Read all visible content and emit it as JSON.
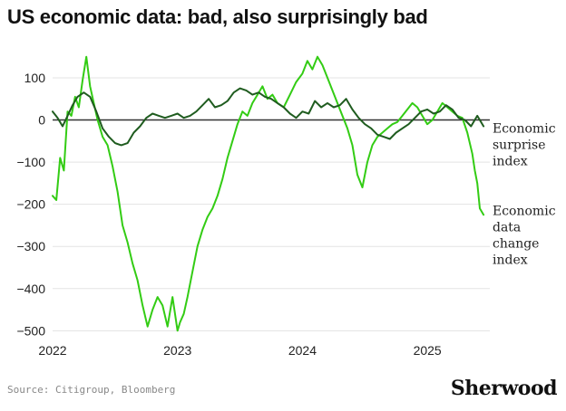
{
  "title": "US economic data: bad, also surprisingly bad",
  "source": "Source: Citigroup, Bloomberg",
  "brand": "Sherwood",
  "chart_data": {
    "type": "line",
    "ylim": [
      -510,
      160
    ],
    "yticks": [
      100,
      0,
      -100,
      -200,
      -300,
      -400,
      -500
    ],
    "ytick_labels": [
      "100",
      "0",
      "−100",
      "−200",
      "−300",
      "−400",
      "−500"
    ],
    "xlim": [
      2022.0,
      2025.5
    ],
    "xticks": [
      2022,
      2023,
      2024,
      2025
    ],
    "xtick_labels": [
      "2022",
      "2023",
      "2024",
      "2025"
    ],
    "grid": "horizontal",
    "zero_line": true,
    "series": [
      {
        "name": "Economic surprise index",
        "label_lines": [
          "Economic",
          "surprise",
          "index"
        ],
        "color": "#1f5c1f",
        "x": [
          2022.0,
          2022.04,
          2022.08,
          2022.12,
          2022.16,
          2022.2,
          2022.25,
          2022.3,
          2022.35,
          2022.4,
          2022.45,
          2022.5,
          2022.55,
          2022.6,
          2022.65,
          2022.7,
          2022.75,
          2022.8,
          2022.85,
          2022.9,
          2022.95,
          2023.0,
          2023.05,
          2023.1,
          2023.15,
          2023.2,
          2023.25,
          2023.3,
          2023.35,
          2023.4,
          2023.45,
          2023.5,
          2023.55,
          2023.6,
          2023.65,
          2023.7,
          2023.75,
          2023.8,
          2023.85,
          2023.9,
          2023.95,
          2024.0,
          2024.05,
          2024.1,
          2024.15,
          2024.2,
          2024.25,
          2024.3,
          2024.35,
          2024.4,
          2024.45,
          2024.5,
          2024.55,
          2024.6,
          2024.65,
          2024.7,
          2024.75,
          2024.8,
          2024.85,
          2024.9,
          2024.95,
          2025.0,
          2025.05,
          2025.1,
          2025.15,
          2025.2,
          2025.25,
          2025.3,
          2025.35,
          2025.4,
          2025.45
        ],
        "y": [
          20,
          5,
          -15,
          10,
          35,
          55,
          65,
          55,
          20,
          -20,
          -40,
          -55,
          -60,
          -55,
          -30,
          -15,
          5,
          15,
          10,
          5,
          10,
          15,
          5,
          10,
          20,
          35,
          50,
          30,
          35,
          45,
          65,
          75,
          70,
          60,
          65,
          55,
          50,
          40,
          30,
          15,
          5,
          20,
          15,
          45,
          30,
          40,
          30,
          35,
          50,
          25,
          5,
          -10,
          -20,
          -35,
          -40,
          -45,
          -30,
          -20,
          -10,
          5,
          20,
          25,
          15,
          20,
          35,
          25,
          5,
          0,
          -15,
          10,
          -15
        ]
      },
      {
        "name": "Economic data change index",
        "label_lines": [
          "Economic",
          "data",
          "change",
          "index"
        ],
        "color": "#33cc14",
        "x": [
          2022.0,
          2022.03,
          2022.06,
          2022.09,
          2022.12,
          2022.15,
          2022.18,
          2022.21,
          2022.24,
          2022.27,
          2022.3,
          2022.33,
          2022.36,
          2022.4,
          2022.44,
          2022.48,
          2022.52,
          2022.56,
          2022.6,
          2022.64,
          2022.68,
          2022.72,
          2022.76,
          2022.8,
          2022.84,
          2022.88,
          2022.92,
          2022.96,
          2023.0,
          2023.02,
          2023.05,
          2023.08,
          2023.12,
          2023.16,
          2023.2,
          2023.24,
          2023.28,
          2023.32,
          2023.36,
          2023.4,
          2023.44,
          2023.48,
          2023.52,
          2023.56,
          2023.6,
          2023.64,
          2023.68,
          2023.72,
          2023.76,
          2023.8,
          2023.85,
          2023.9,
          2023.95,
          2024.0,
          2024.04,
          2024.08,
          2024.12,
          2024.16,
          2024.2,
          2024.24,
          2024.28,
          2024.32,
          2024.36,
          2024.4,
          2024.44,
          2024.48,
          2024.52,
          2024.56,
          2024.6,
          2024.64,
          2024.68,
          2024.72,
          2024.76,
          2024.8,
          2024.84,
          2024.88,
          2024.92,
          2024.96,
          2025.0,
          2025.04,
          2025.08,
          2025.12,
          2025.16,
          2025.2,
          2025.24,
          2025.28,
          2025.32,
          2025.36,
          2025.38,
          2025.4,
          2025.42,
          2025.45
        ],
        "y": [
          -180,
          -190,
          -90,
          -120,
          20,
          10,
          55,
          30,
          95,
          150,
          80,
          40,
          0,
          -40,
          -60,
          -110,
          -170,
          -250,
          -290,
          -340,
          -380,
          -440,
          -490,
          -450,
          -420,
          -440,
          -490,
          -420,
          -500,
          -480,
          -460,
          -420,
          -360,
          -300,
          -260,
          -230,
          -210,
          -180,
          -140,
          -90,
          -50,
          -10,
          20,
          10,
          40,
          60,
          80,
          50,
          60,
          40,
          30,
          60,
          90,
          110,
          140,
          120,
          150,
          130,
          100,
          70,
          40,
          10,
          -20,
          -60,
          -130,
          -160,
          -100,
          -60,
          -40,
          -30,
          -20,
          -10,
          -5,
          10,
          25,
          40,
          30,
          10,
          -10,
          0,
          20,
          40,
          30,
          20,
          10,
          5,
          -30,
          -80,
          -120,
          -150,
          -210,
          -225
        ]
      }
    ]
  }
}
